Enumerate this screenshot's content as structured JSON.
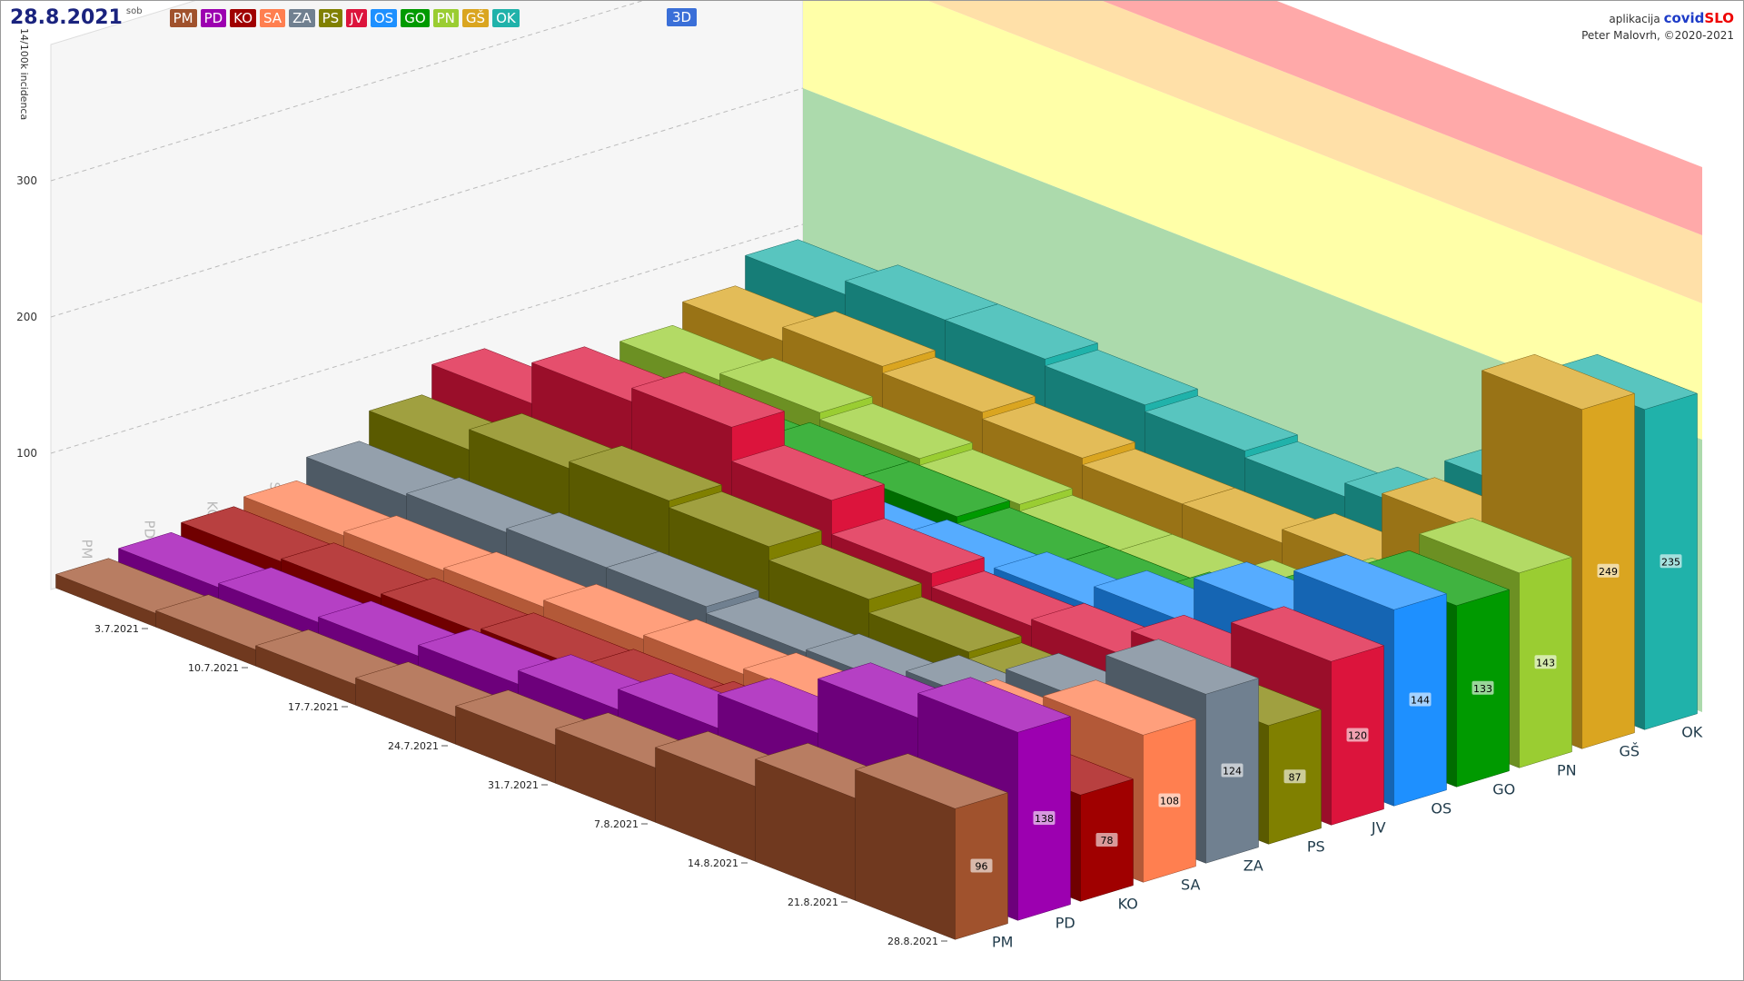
{
  "header": {
    "date": "28.8.2021",
    "weekday": "sob",
    "mode": "3D",
    "app_prefix": "aplikacija",
    "app_name_a": "covid",
    "app_name_b": "SLO",
    "credit": "Peter Malovrh, ©2020-2021"
  },
  "chart_data": {
    "type": "bar3d",
    "y_label": "14/100k incidenca",
    "categories": [
      "PM",
      "PD",
      "KO",
      "SA",
      "ZA",
      "PS",
      "JV",
      "OS",
      "GO",
      "PN",
      "GŠ",
      "OK"
    ],
    "x": [
      "3.7.2021",
      "10.7.2021",
      "17.7.2021",
      "24.7.2021",
      "31.7.2021",
      "7.8.2021",
      "14.8.2021",
      "21.8.2021",
      "28.8.2021"
    ],
    "series": [
      {
        "name": "PM",
        "color": "#a0522d",
        "values": [
          10,
          12,
          15,
          20,
          28,
          40,
          55,
          75,
          96
        ]
      },
      {
        "name": "PD",
        "color": "#9c00b0",
        "values": [
          15,
          18,
          22,
          30,
          40,
          55,
          80,
          120,
          138
        ]
      },
      {
        "name": "KO",
        "color": "#a00000",
        "values": [
          20,
          22,
          25,
          28,
          30,
          35,
          45,
          60,
          78
        ]
      },
      {
        "name": "SA",
        "color": "#ff7f50",
        "values": [
          25,
          28,
          30,
          35,
          38,
          42,
          55,
          80,
          108
        ]
      },
      {
        "name": "ZA",
        "color": "#708090",
        "values": [
          40,
          42,
          45,
          45,
          40,
          42,
          55,
          85,
          124
        ]
      },
      {
        "name": "PS",
        "color": "#808000",
        "values": [
          60,
          75,
          80,
          75,
          65,
          55,
          50,
          60,
          87
        ]
      },
      {
        "name": "JV",
        "color": "#dc143c",
        "values": [
          80,
          110,
          120,
          95,
          70,
          60,
          65,
          85,
          120
        ]
      },
      {
        "name": "OS",
        "color": "#1e90ff",
        "values": [
          30,
          35,
          45,
          50,
          55,
          60,
          75,
          110,
          144
        ]
      },
      {
        "name": "GO",
        "color": "#009a00",
        "values": [
          40,
          50,
          55,
          55,
          50,
          50,
          60,
          90,
          133
        ]
      },
      {
        "name": "PN",
        "color": "#9acd32",
        "values": [
          55,
          60,
          55,
          50,
          45,
          45,
          55,
          85,
          143
        ]
      },
      {
        "name": "GŠ",
        "color": "#daa520",
        "values": [
          70,
          80,
          75,
          70,
          65,
          65,
          75,
          130,
          249
        ]
      },
      {
        "name": "OK",
        "color": "#20b2aa",
        "values": [
          90,
          100,
          100,
          95,
          90,
          85,
          95,
          140,
          235
        ]
      }
    ],
    "ylim": [
      0,
      400
    ],
    "yticks": [
      100,
      200,
      300
    ],
    "grid": true,
    "bands": [
      {
        "from": 0,
        "to": 200,
        "color": "#a3d6a3"
      },
      {
        "from": 200,
        "to": 300,
        "color": "#ffff9e"
      },
      {
        "from": 300,
        "to": 350,
        "color": "#ffdd9e"
      },
      {
        "from": 350,
        "to": 400,
        "color": "#ffa0a0"
      }
    ]
  }
}
